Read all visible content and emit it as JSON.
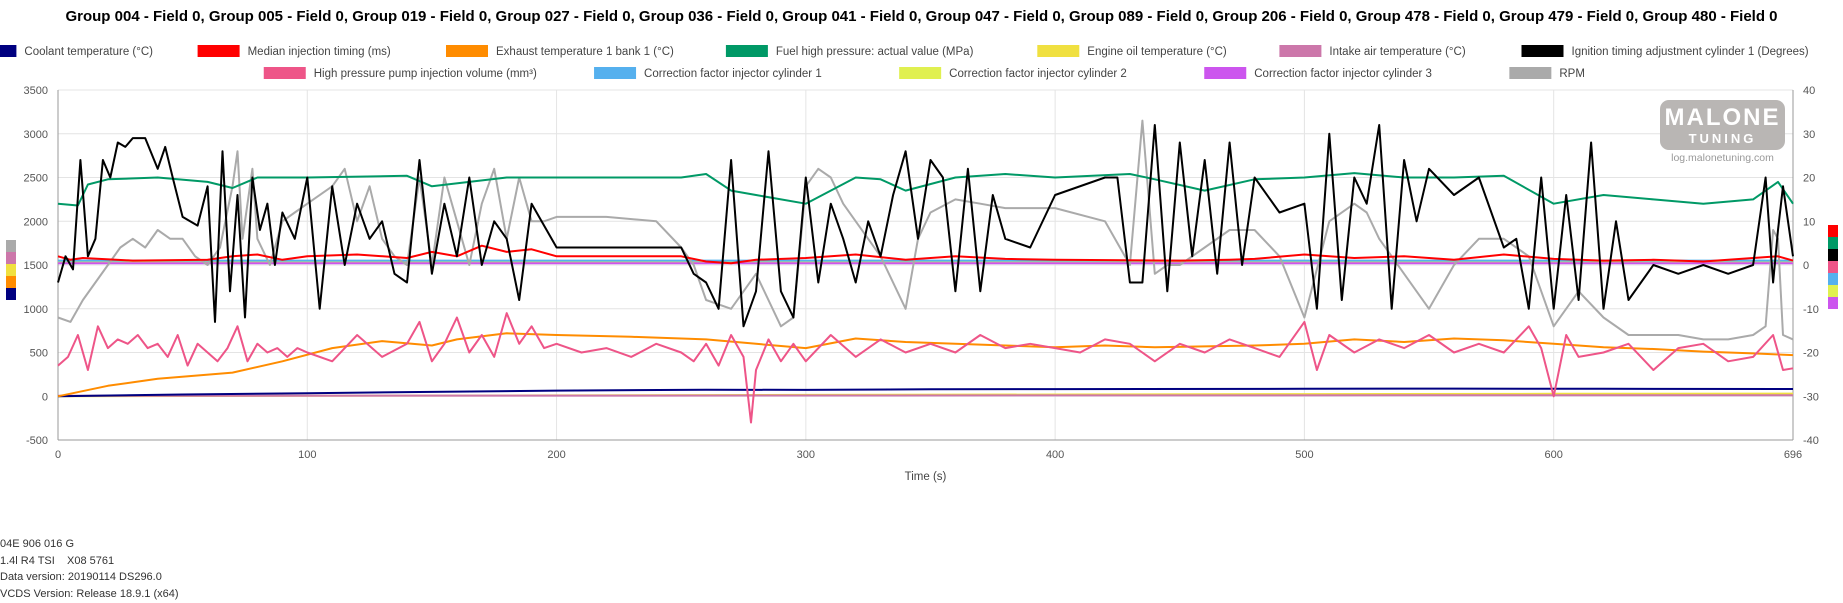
{
  "title": "Group 004 - Field 0, Group 005 - Field 0, Group 019 - Field 0, Group 027 - Field 0, Group 036 - Field 0, Group 041 - Field 0, Group 047 - Field 0, Group 089 - Field 0, Group 206 - Field 0, Group 478 - Field 0, Group 479 - Field 0, Group 480 - Field 0",
  "logo": {
    "line1": "MALONE",
    "line2": "TUNING",
    "url": "log.malonetuning.com"
  },
  "info": [
    "04E 906 016 G",
    "1.4l R4 TSI    X08 5761",
    "Data version: 20190114 DS296.0",
    "VCDS Version: Release 18.9.1 (x64)"
  ],
  "chart_data": {
    "type": "line",
    "xlabel": "Time (s)",
    "xlim": [
      0,
      696
    ],
    "x_ticks": [
      0,
      100,
      200,
      300,
      400,
      500,
      600,
      696
    ],
    "ylim_left": [
      -500,
      3500
    ],
    "y_ticks_left": [
      -500,
      0,
      500,
      1000,
      1500,
      2000,
      2500,
      3000,
      3500
    ],
    "ylim_right": [
      -40,
      40
    ],
    "y_ticks_right": [
      -40,
      -30,
      -20,
      -10,
      0,
      10,
      20,
      30,
      40
    ],
    "grid": true,
    "legend_position": "top",
    "series": [
      {
        "name": "Coolant temperature (°C)",
        "color": "#000080",
        "axis": "left",
        "x": [
          0,
          50,
          100,
          150,
          200,
          260,
          300,
          350,
          400,
          500,
          560,
          620,
          696
        ],
        "y": [
          0,
          20,
          35,
          50,
          65,
          75,
          72,
          80,
          82,
          85,
          88,
          85,
          83
        ]
      },
      {
        "name": "Median injection timing (ms)",
        "color": "#ff0000",
        "axis": "left",
        "x": [
          0,
          5,
          10,
          30,
          60,
          70,
          80,
          90,
          100,
          120,
          140,
          150,
          160,
          170,
          180,
          190,
          200,
          250,
          260,
          270,
          280,
          300,
          320,
          340,
          360,
          380,
          400,
          450,
          470,
          480,
          500,
          520,
          540,
          560,
          580,
          600,
          620,
          640,
          660,
          680,
          690,
          696
        ],
        "y": [
          1600,
          1560,
          1580,
          1550,
          1560,
          1600,
          1620,
          1560,
          1600,
          1620,
          1580,
          1650,
          1600,
          1720,
          1650,
          1680,
          1600,
          1600,
          1540,
          1520,
          1560,
          1580,
          1620,
          1560,
          1600,
          1570,
          1560,
          1550,
          1560,
          1570,
          1620,
          1580,
          1600,
          1560,
          1620,
          1570,
          1550,
          1560,
          1540,
          1580,
          1600,
          1550
        ]
      },
      {
        "name": "Exhaust temperature 1 bank 1 (°C)",
        "color": "#ff8c00",
        "axis": "left",
        "x": [
          0,
          20,
          40,
          70,
          90,
          110,
          130,
          150,
          160,
          180,
          200,
          230,
          260,
          280,
          300,
          320,
          340,
          360,
          380,
          400,
          420,
          440,
          460,
          480,
          500,
          520,
          540,
          560,
          580,
          600,
          620,
          640,
          660,
          680,
          696
        ],
        "y": [
          0,
          120,
          200,
          270,
          400,
          550,
          630,
          580,
          650,
          720,
          700,
          680,
          650,
          600,
          550,
          660,
          620,
          600,
          580,
          560,
          580,
          560,
          570,
          580,
          600,
          650,
          620,
          660,
          640,
          600,
          560,
          540,
          510,
          490,
          470
        ]
      },
      {
        "name": "Fuel high pressure: actual value (MPa)",
        "color": "#009966",
        "axis": "left",
        "x": [
          0,
          8,
          12,
          20,
          40,
          60,
          70,
          80,
          100,
          140,
          150,
          180,
          200,
          250,
          260,
          270,
          280,
          300,
          320,
          330,
          340,
          360,
          380,
          400,
          430,
          440,
          460,
          480,
          500,
          520,
          540,
          560,
          580,
          600,
          620,
          640,
          660,
          680,
          690,
          696
        ],
        "y": [
          2200,
          2180,
          2420,
          2480,
          2500,
          2450,
          2380,
          2500,
          2500,
          2520,
          2400,
          2500,
          2500,
          2500,
          2540,
          2350,
          2300,
          2200,
          2500,
          2480,
          2350,
          2500,
          2540,
          2500,
          2540,
          2480,
          2350,
          2480,
          2500,
          2550,
          2500,
          2500,
          2520,
          2200,
          2300,
          2250,
          2200,
          2250,
          2450,
          2200
        ]
      },
      {
        "name": "Engine oil temperature (°C)",
        "color": "#f0e040",
        "axis": "left",
        "x": [
          0,
          100,
          200,
          300,
          400,
          500,
          600,
          696
        ],
        "y": [
          0,
          5,
          10,
          15,
          20,
          25,
          28,
          30
        ]
      },
      {
        "name": "Intake air temperature (°C)",
        "color": "#cc77aa",
        "axis": "left",
        "x": [
          0,
          200,
          400,
          600,
          696
        ],
        "y": [
          5,
          8,
          10,
          12,
          12
        ]
      },
      {
        "name": "Ignition timing adjustment cylinder 1 (Degrees)",
        "color": "#000000",
        "axis": "left",
        "x": [
          0,
          3,
          6,
          9,
          12,
          15,
          18,
          21,
          24,
          27,
          30,
          35,
          40,
          43,
          46,
          50,
          53,
          56,
          60,
          63,
          66,
          69,
          72,
          75,
          78,
          81,
          84,
          87,
          90,
          95,
          100,
          105,
          110,
          115,
          120,
          125,
          130,
          135,
          140,
          145,
          150,
          155,
          160,
          165,
          170,
          175,
          180,
          185,
          190,
          200,
          220,
          250,
          255,
          260,
          265,
          270,
          275,
          280,
          285,
          290,
          295,
          300,
          305,
          310,
          315,
          320,
          325,
          330,
          335,
          340,
          345,
          350,
          355,
          360,
          365,
          370,
          375,
          380,
          390,
          400,
          420,
          425,
          430,
          435,
          440,
          445,
          450,
          455,
          460,
          465,
          470,
          475,
          480,
          490,
          500,
          505,
          510,
          515,
          520,
          525,
          530,
          535,
          540,
          545,
          550,
          560,
          570,
          580,
          585,
          590,
          595,
          600,
          605,
          610,
          615,
          620,
          625,
          630,
          640,
          650,
          660,
          670,
          680,
          685,
          688,
          690,
          692,
          696
        ],
        "y": [
          1300,
          1600,
          1450,
          2700,
          1600,
          1800,
          2700,
          2500,
          2900,
          2850,
          2950,
          2950,
          2600,
          2850,
          2500,
          2050,
          2000,
          1950,
          2400,
          850,
          2800,
          1200,
          2300,
          900,
          2500,
          1900,
          2200,
          1500,
          2100,
          1800,
          2500,
          1000,
          2400,
          1500,
          2200,
          1800,
          2000,
          1400,
          1300,
          2700,
          1400,
          2200,
          1600,
          2500,
          1500,
          2000,
          1800,
          1100,
          2200,
          1700,
          1700,
          1700,
          1400,
          1300,
          1000,
          2700,
          800,
          1200,
          2800,
          1200,
          900,
          2500,
          1300,
          2200,
          1800,
          1300,
          2000,
          1600,
          2300,
          2800,
          1800,
          2700,
          2500,
          1200,
          2600,
          1200,
          2300,
          1800,
          1700,
          2300,
          2500,
          2500,
          1300,
          1300,
          3100,
          1200,
          2900,
          1600,
          2700,
          1400,
          2900,
          1500,
          2500,
          2100,
          2200,
          1000,
          3000,
          1100,
          2500,
          2200,
          3100,
          1000,
          2700,
          2000,
          2600,
          2300,
          2500,
          1700,
          1800,
          1000,
          2500,
          1000,
          2300,
          1100,
          2900,
          1000,
          2000,
          1100,
          1500,
          1400,
          1500,
          1400,
          1500,
          2500,
          1300,
          1900,
          2400,
          1600
        ]
      },
      {
        "name": "High pressure pump injection volume (mm³)",
        "color": "#ee5588",
        "axis": "left",
        "x": [
          0,
          4,
          8,
          12,
          16,
          20,
          24,
          28,
          32,
          36,
          40,
          44,
          48,
          52,
          56,
          60,
          64,
          68,
          72,
          76,
          80,
          84,
          88,
          92,
          96,
          100,
          110,
          120,
          130,
          140,
          145,
          150,
          155,
          160,
          165,
          170,
          175,
          180,
          185,
          190,
          195,
          200,
          210,
          220,
          230,
          240,
          250,
          255,
          260,
          265,
          270,
          275,
          278,
          280,
          285,
          290,
          295,
          300,
          310,
          320,
          330,
          340,
          350,
          360,
          370,
          380,
          390,
          400,
          410,
          420,
          430,
          440,
          450,
          460,
          470,
          480,
          490,
          500,
          505,
          510,
          520,
          530,
          540,
          550,
          560,
          570,
          580,
          590,
          595,
          600,
          605,
          610,
          620,
          630,
          640,
          650,
          660,
          670,
          680,
          688,
          692,
          696
        ],
        "y": [
          350,
          450,
          700,
          300,
          800,
          550,
          650,
          600,
          700,
          550,
          600,
          450,
          700,
          350,
          600,
          500,
          400,
          550,
          800,
          400,
          600,
          500,
          550,
          450,
          550,
          500,
          400,
          700,
          450,
          600,
          850,
          400,
          600,
          900,
          500,
          700,
          450,
          950,
          600,
          800,
          550,
          600,
          500,
          550,
          450,
          600,
          500,
          400,
          600,
          350,
          700,
          450,
          -300,
          300,
          650,
          400,
          600,
          400,
          700,
          450,
          650,
          500,
          600,
          500,
          700,
          550,
          600,
          550,
          500,
          650,
          600,
          400,
          600,
          500,
          650,
          550,
          450,
          850,
          300,
          700,
          500,
          650,
          550,
          700,
          500,
          600,
          500,
          800,
          550,
          0,
          700,
          450,
          500,
          600,
          300,
          550,
          600,
          400,
          450,
          700,
          300,
          320
        ]
      },
      {
        "name": "Correction factor injector cylinder 1",
        "color": "#55b0ee",
        "axis": "left",
        "x": [
          0,
          200,
          400,
          600,
          696
        ],
        "y": [
          1550,
          1550,
          1550,
          1550,
          1550
        ]
      },
      {
        "name": "Correction factor injector cylinder 2",
        "color": "#e0f050",
        "axis": "left",
        "x": [
          0,
          200,
          400,
          600,
          696
        ],
        "y": [
          1530,
          1530,
          1530,
          1530,
          1530
        ]
      },
      {
        "name": "Correction factor injector cylinder 3",
        "color": "#cc55ee",
        "axis": "left",
        "x": [
          0,
          200,
          400,
          600,
          696
        ],
        "y": [
          1520,
          1520,
          1520,
          1520,
          1520
        ]
      },
      {
        "name": "RPM",
        "color": "#aaaaaa",
        "axis": "left",
        "x": [
          0,
          5,
          10,
          15,
          20,
          25,
          30,
          35,
          40,
          45,
          50,
          55,
          60,
          65,
          70,
          72,
          74,
          76,
          78,
          80,
          85,
          90,
          95,
          100,
          110,
          115,
          120,
          125,
          130,
          135,
          140,
          145,
          150,
          155,
          160,
          165,
          170,
          175,
          180,
          185,
          190,
          195,
          200,
          210,
          220,
          240,
          250,
          255,
          260,
          270,
          280,
          290,
          295,
          300,
          305,
          310,
          315,
          320,
          330,
          340,
          345,
          350,
          360,
          370,
          380,
          400,
          420,
          430,
          435,
          440,
          445,
          450,
          460,
          470,
          480,
          490,
          500,
          510,
          520,
          525,
          530,
          540,
          550,
          560,
          570,
          580,
          590,
          600,
          610,
          620,
          630,
          640,
          650,
          660,
          670,
          680,
          685,
          688,
          690,
          692,
          696
        ],
        "y": [
          900,
          850,
          1100,
          1300,
          1500,
          1700,
          1800,
          1700,
          1900,
          1800,
          1800,
          1600,
          1500,
          1700,
          2400,
          2800,
          1800,
          2200,
          2600,
          1800,
          1500,
          2000,
          2100,
          2200,
          2400,
          2600,
          2000,
          2400,
          1800,
          1600,
          1500,
          2500,
          1500,
          2500,
          2000,
          1500,
          2200,
          2600,
          1800,
          2500,
          2000,
          2000,
          2050,
          2050,
          2050,
          2000,
          1700,
          1500,
          1100,
          1000,
          1400,
          800,
          900,
          2400,
          2600,
          2500,
          2200,
          2000,
          1600,
          1000,
          1800,
          2100,
          2250,
          2200,
          2150,
          2150,
          2000,
          1500,
          3150,
          1400,
          1500,
          1500,
          1700,
          1900,
          1900,
          1600,
          900,
          2000,
          2200,
          2100,
          1800,
          1400,
          1000,
          1500,
          1800,
          1800,
          1600,
          800,
          1200,
          900,
          700,
          700,
          700,
          650,
          650,
          700,
          800,
          1900,
          1800,
          700,
          650
        ]
      }
    ]
  }
}
